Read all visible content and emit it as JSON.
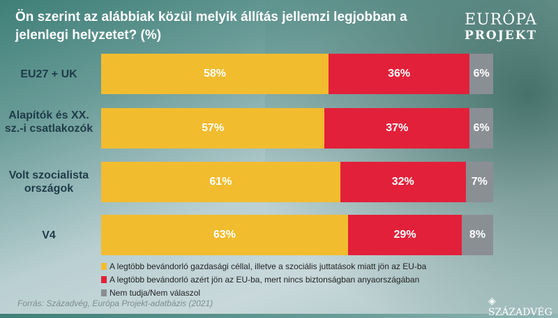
{
  "title": "Ön szerint az alábbiak közül melyik állítás jellemzi legjobban a jelenlegi helyzetet? (%)",
  "logo": {
    "line1": "EURÓPA",
    "line2": "PROJEKT"
  },
  "chart_data": {
    "type": "bar",
    "orientation": "horizontal",
    "stacked": true,
    "title": "Ön szerint az alábbiak közül melyik állítás jellemzi legjobban a jelenlegi helyzetet? (%)",
    "categories": [
      "EU27 + UK",
      "Alapítók és XX. sz.-i csatlakozók",
      "Volt szocialista országok",
      "V4"
    ],
    "series": [
      {
        "name": "A legtöbb bevándorló gazdasági céllal, illetve a szociális juttatások miatt jön az EU-ba",
        "color": "#f2bc2f",
        "values": [
          58,
          57,
          61,
          63
        ],
        "labels": [
          "58%",
          "57%",
          "61%",
          "63%"
        ]
      },
      {
        "name": "A legtöbb bevándorló azért jön az EU-ba, mert nincs biztonságban anyaországában",
        "color": "#e3203a",
        "values": [
          36,
          37,
          32,
          29
        ],
        "labels": [
          "36%",
          "37%",
          "32%",
          "29%"
        ]
      },
      {
        "name": "Nem tudja/Nem válaszol",
        "color": "#8a8f94",
        "values": [
          6,
          6,
          7,
          8
        ],
        "labels": [
          "6%",
          "6%",
          "7%",
          "8%"
        ]
      }
    ],
    "xlim": [
      0,
      100
    ]
  },
  "source": "Forrás: Századvég, Európa Projekt-adatbázis (2021)",
  "brand": "SZÁZADVÉG"
}
